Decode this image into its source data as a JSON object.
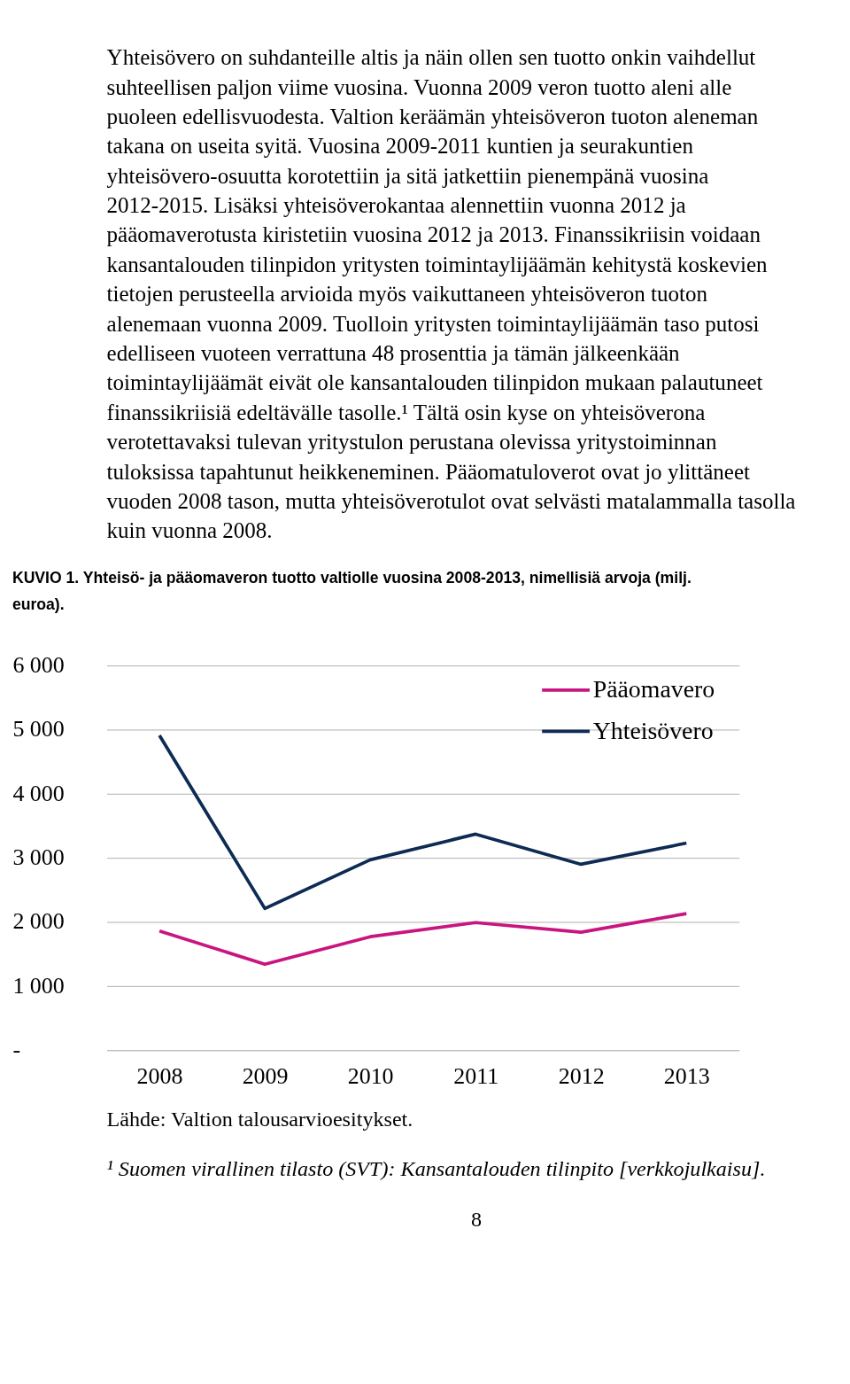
{
  "chart_data": {
    "type": "line",
    "title": "KUVIO 1. Yhteisö- ja pääomaveron tuotto valtiolle vuosina 2008-2013, nimellisiä arvoja (milj. euroa).",
    "categories": [
      "2008",
      "2009",
      "2010",
      "2011",
      "2012",
      "2013"
    ],
    "series": [
      {
        "name": "Pääomavero",
        "color": "#c8157f",
        "values": [
          1860,
          1340,
          1770,
          1990,
          1840,
          2130
        ]
      },
      {
        "name": "Yhteisövero",
        "color": "#0e2b54",
        "values": [
          4910,
          2210,
          2970,
          3370,
          2900,
          3230
        ]
      }
    ],
    "ylim": [
      0,
      6000
    ],
    "yticks": [
      {
        "value": 0,
        "label": "-"
      },
      {
        "value": 1000,
        "label": "1 000"
      },
      {
        "value": 2000,
        "label": "2 000"
      },
      {
        "value": 3000,
        "label": "3 000"
      },
      {
        "value": 4000,
        "label": "4 000"
      },
      {
        "value": 5000,
        "label": "5 000"
      },
      {
        "value": 6000,
        "label": "6 000"
      }
    ],
    "grid": "y",
    "legend": "top right",
    "marker": "none",
    "line_style": "solid",
    "annotations": [
      "Yhteisövero on suhdanteille altis ja näin ollen sen tuotto onkin vaihdellut suhteellisen paljon viime vuosina. Vuonna 2009 veron tuotto aleni alle puoleen edellisvuodesta. Valtion keräämän yhteisöveron tuoton aleneman takana on useita syitä. Vuosina 2009-2011 kuntien ja seurakuntien yhteisövero-osuutta korotettiin ja sitä jatkettiin pienempänä vuosina 2012-2015. Lisäksi yhteisöverokantaa alennettiin vuonna 2012 ja pääomaverotusta kiristetiin vuosina 2012 ja 2013. Finanssikriisin voidaan kansantalouden tilinpidon yritysten toimintaylijäämän kehitystä koskevien tietojen perusteella arvioida myös vaikuttaneen yhteisöveron tuoton alenemaan vuonna 2009. Tuolloin yritysten toimintaylijäämän taso putosi edelliseen vuoteen verrattuna 48 prosenttia ja tämän jälkeenkään toimintaylijäämät eivät ole kansantalouden tilinpidon mukaan palautuneet finanssikriisiä edeltävälle tasolle.¹ Tältä osin kyse on yhteisöverona verotettavaksi tulevan yritystulon perustana olevissa yritystoiminnan tuloksissa tapahtunut heikkeneminen. Pääomatuloverot ovat jo ylittäneet vuoden 2008 tason, mutta yhteisöverotulot ovat selvästi matalammalla tasolla kuin vuonna 2008.",
      "Lähde: Valtion talousarvioesitykset.",
      "¹ Suomen virallinen tilasto (SVT): Kansantalouden tilinpito [verkkojulkaisu].",
      "8"
    ]
  }
}
